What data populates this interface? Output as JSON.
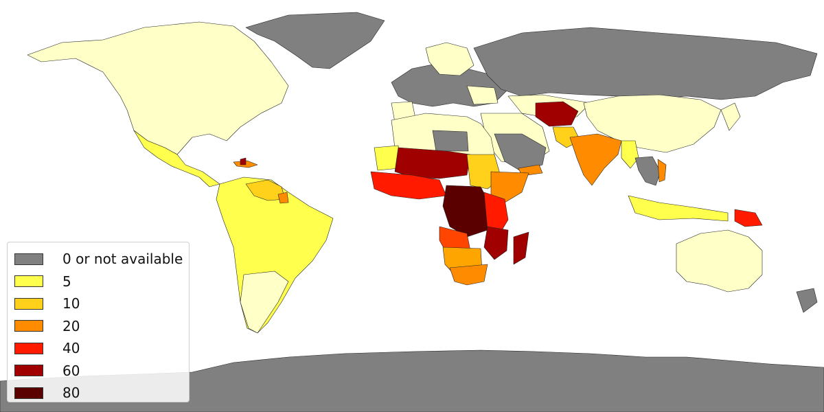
{
  "map": {
    "legend": [
      {
        "label": "0 or not available",
        "color": "#808080"
      },
      {
        "label": "5",
        "color": "#ffff4d"
      },
      {
        "label": "10",
        "color": "#ffd11a"
      },
      {
        "label": "20",
        "color": "#ff8c00"
      },
      {
        "label": "40",
        "color": "#ff1a00"
      },
      {
        "label": "60",
        "color": "#a00000"
      },
      {
        "label": "80",
        "color": "#5a0000"
      }
    ],
    "colors": {
      "no_data": "#808080",
      "lowest": "#ffffc8",
      "ocean": "#ffffff"
    }
  }
}
